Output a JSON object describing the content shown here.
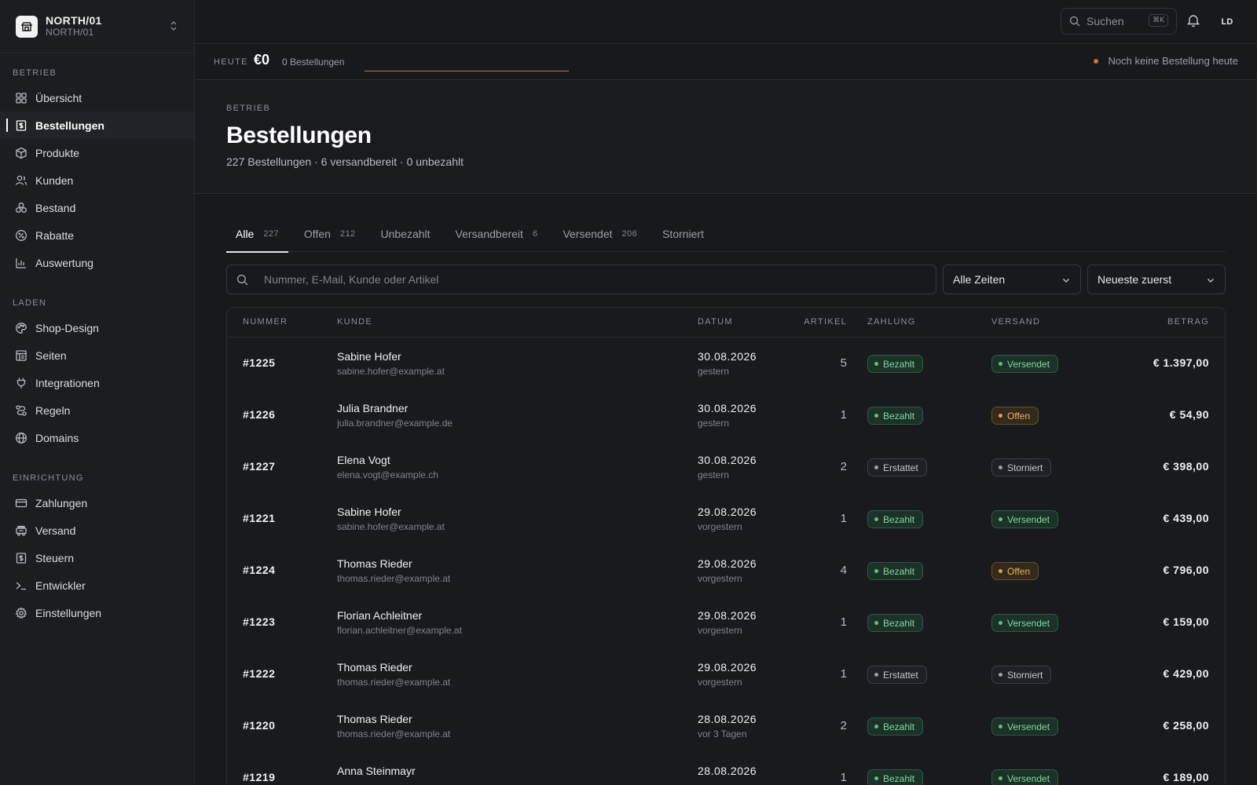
{
  "store": {
    "name": "NORTH/01",
    "sub": "NORTH/01"
  },
  "sidebar": {
    "sections": [
      {
        "label": "BETRIEB",
        "items": [
          {
            "label": "Übersicht",
            "icon": "grid-icon"
          },
          {
            "label": "Bestellungen",
            "icon": "receipt-icon",
            "active": true
          },
          {
            "label": "Produkte",
            "icon": "box-icon"
          },
          {
            "label": "Kunden",
            "icon": "users-icon"
          },
          {
            "label": "Bestand",
            "icon": "layers-icon"
          },
          {
            "label": "Rabatte",
            "icon": "percent-icon"
          },
          {
            "label": "Auswertung",
            "icon": "bar-chart-icon"
          }
        ]
      },
      {
        "label": "LADEN",
        "items": [
          {
            "label": "Shop-Design",
            "icon": "palette-icon"
          },
          {
            "label": "Seiten",
            "icon": "pages-icon"
          },
          {
            "label": "Integrationen",
            "icon": "plug-icon"
          },
          {
            "label": "Regeln",
            "icon": "route-icon"
          },
          {
            "label": "Domains",
            "icon": "globe-icon"
          }
        ]
      },
      {
        "label": "EINRICHTUNG",
        "items": [
          {
            "label": "Zahlungen",
            "icon": "card-icon"
          },
          {
            "label": "Versand",
            "icon": "truck-icon"
          },
          {
            "label": "Steuern",
            "icon": "tax-icon"
          },
          {
            "label": "Entwickler",
            "icon": "terminal-icon"
          },
          {
            "label": "Einstellungen",
            "icon": "gear-icon"
          }
        ]
      }
    ]
  },
  "topbar": {
    "search_placeholder": "Suchen",
    "shortcut": "⌘K",
    "avatar": "LD"
  },
  "today": {
    "label": "HEUTE",
    "revenue": "€0",
    "orders": "0 Bestellungen",
    "status": "Noch keine Bestellung heute"
  },
  "header": {
    "breadcrumb": "BETRIEB",
    "title": "Bestellungen",
    "subtitle": "227 Bestellungen · 6 versandbereit · 0 unbezahlt"
  },
  "tabs": [
    {
      "label": "Alle",
      "count": "227",
      "active": true
    },
    {
      "label": "Offen",
      "count": "212"
    },
    {
      "label": "Unbezahlt",
      "count": ""
    },
    {
      "label": "Versandbereit",
      "count": "6"
    },
    {
      "label": "Versendet",
      "count": "206"
    },
    {
      "label": "Storniert",
      "count": ""
    }
  ],
  "filters": {
    "search_placeholder": "Nummer, E-Mail, Kunde oder Artikel",
    "time": "Alle Zeiten",
    "sort": "Neueste zuerst"
  },
  "table": {
    "columns": {
      "number": "NUMMER",
      "customer": "KUNDE",
      "date": "DATUM",
      "items": "ARTIKEL",
      "payment": "ZAHLUNG",
      "shipping": "VERSAND",
      "amount": "BETRAG"
    },
    "rows": [
      {
        "number": "#1225",
        "name": "Sabine Hofer",
        "email": "sabine.hofer@example.at",
        "date": "30.08.2026",
        "rel": "gestern",
        "qty": "5",
        "payment": "Bezahlt",
        "payment_style": "green",
        "shipping": "Versendet",
        "shipping_style": "green",
        "amount": "€ 1.397,00"
      },
      {
        "number": "#1226",
        "name": "Julia Brandner",
        "email": "julia.brandner@example.de",
        "date": "30.08.2026",
        "rel": "gestern",
        "qty": "1",
        "payment": "Bezahlt",
        "payment_style": "green",
        "shipping": "Offen",
        "shipping_style": "orange",
        "amount": "€ 54,90"
      },
      {
        "number": "#1227",
        "name": "Elena Vogt",
        "email": "elena.vogt@example.ch",
        "date": "30.08.2026",
        "rel": "gestern",
        "qty": "2",
        "payment": "Erstattet",
        "payment_style": "gray",
        "shipping": "Storniert",
        "shipping_style": "gray",
        "amount": "€ 398,00"
      },
      {
        "number": "#1221",
        "name": "Sabine Hofer",
        "email": "sabine.hofer@example.at",
        "date": "29.08.2026",
        "rel": "vorgestern",
        "qty": "1",
        "payment": "Bezahlt",
        "payment_style": "green",
        "shipping": "Versendet",
        "shipping_style": "green",
        "amount": "€ 439,00"
      },
      {
        "number": "#1224",
        "name": "Thomas Rieder",
        "email": "thomas.rieder@example.at",
        "date": "29.08.2026",
        "rel": "vorgestern",
        "qty": "4",
        "payment": "Bezahlt",
        "payment_style": "green",
        "shipping": "Offen",
        "shipping_style": "orange",
        "amount": "€ 796,00"
      },
      {
        "number": "#1223",
        "name": "Florian Achleitner",
        "email": "florian.achleitner@example.at",
        "date": "29.08.2026",
        "rel": "vorgestern",
        "qty": "1",
        "payment": "Bezahlt",
        "payment_style": "green",
        "shipping": "Versendet",
        "shipping_style": "green",
        "amount": "€ 159,00"
      },
      {
        "number": "#1222",
        "name": "Thomas Rieder",
        "email": "thomas.rieder@example.at",
        "date": "29.08.2026",
        "rel": "vorgestern",
        "qty": "1",
        "payment": "Erstattet",
        "payment_style": "gray",
        "shipping": "Storniert",
        "shipping_style": "gray",
        "amount": "€ 429,00"
      },
      {
        "number": "#1220",
        "name": "Thomas Rieder",
        "email": "thomas.rieder@example.at",
        "date": "28.08.2026",
        "rel": "vor 3 Tagen",
        "qty": "2",
        "payment": "Bezahlt",
        "payment_style": "green",
        "shipping": "Versendet",
        "shipping_style": "green",
        "amount": "€ 258,00"
      },
      {
        "number": "#1219",
        "name": "Anna Steinmayr",
        "email": "",
        "date": "28.08.2026",
        "rel": "",
        "qty": "1",
        "payment": "Bezahlt",
        "payment_style": "green",
        "shipping": "Versendet",
        "shipping_style": "green",
        "amount": "€ 189,00"
      }
    ]
  }
}
